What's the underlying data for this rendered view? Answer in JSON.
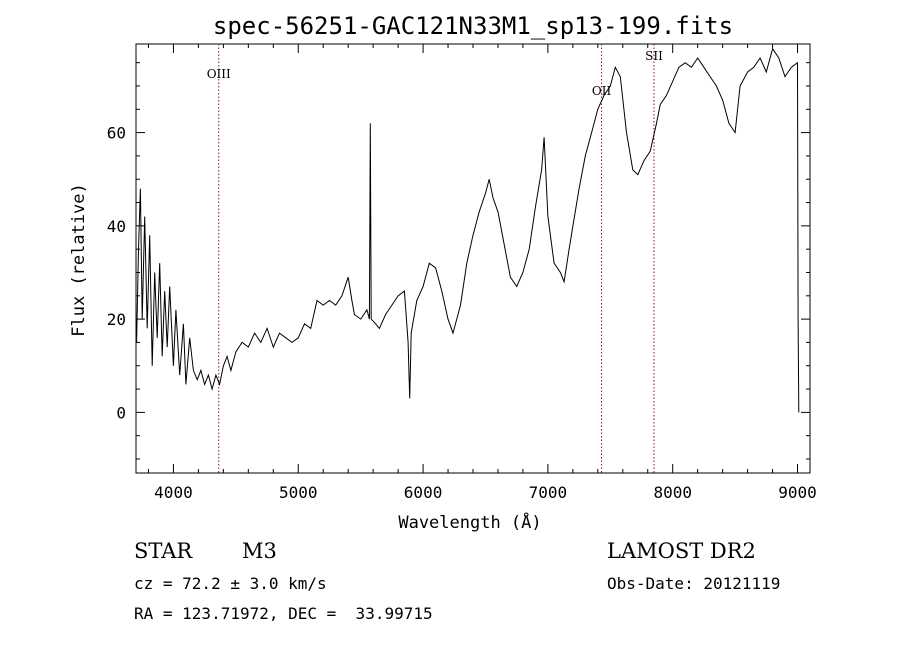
{
  "chart_data": {
    "type": "line",
    "title": "spec-56251-GAC121N33M1_sp13-199.fits",
    "xlabel": "Wavelength (Å)",
    "ylabel": "Flux (relative)",
    "xlim": [
      3700,
      9100
    ],
    "ylim": [
      -13,
      79
    ],
    "xticks": [
      4000,
      5000,
      6000,
      7000,
      8000,
      9000
    ],
    "yticks": [
      0,
      20,
      40,
      60
    ],
    "grid": false,
    "series": [
      {
        "color": "#000000",
        "points": [
          [
            3705,
            15
          ],
          [
            3720,
            35
          ],
          [
            3735,
            48
          ],
          [
            3750,
            20
          ],
          [
            3770,
            42
          ],
          [
            3790,
            18
          ],
          [
            3810,
            38
          ],
          [
            3830,
            10
          ],
          [
            3850,
            30
          ],
          [
            3870,
            16
          ],
          [
            3890,
            32
          ],
          [
            3910,
            12
          ],
          [
            3930,
            26
          ],
          [
            3950,
            14
          ],
          [
            3970,
            27
          ],
          [
            4000,
            10
          ],
          [
            4020,
            22
          ],
          [
            4050,
            8
          ],
          [
            4080,
            19
          ],
          [
            4100,
            6
          ],
          [
            4130,
            16
          ],
          [
            4160,
            9
          ],
          [
            4190,
            7
          ],
          [
            4220,
            9
          ],
          [
            4250,
            6
          ],
          [
            4280,
            8
          ],
          [
            4310,
            5
          ],
          [
            4340,
            8
          ],
          [
            4370,
            6
          ],
          [
            4400,
            10
          ],
          [
            4430,
            12
          ],
          [
            4460,
            9
          ],
          [
            4500,
            13
          ],
          [
            4550,
            15
          ],
          [
            4600,
            14
          ],
          [
            4650,
            17
          ],
          [
            4700,
            15
          ],
          [
            4750,
            18
          ],
          [
            4800,
            14
          ],
          [
            4850,
            17
          ],
          [
            4900,
            16
          ],
          [
            4950,
            15
          ],
          [
            5000,
            16
          ],
          [
            5050,
            19
          ],
          [
            5100,
            18
          ],
          [
            5150,
            24
          ],
          [
            5200,
            23
          ],
          [
            5250,
            24
          ],
          [
            5300,
            23
          ],
          [
            5350,
            25
          ],
          [
            5400,
            29
          ],
          [
            5430,
            24
          ],
          [
            5450,
            21
          ],
          [
            5500,
            20
          ],
          [
            5550,
            22
          ],
          [
            5570,
            20
          ],
          [
            5577,
            62
          ],
          [
            5584,
            20
          ],
          [
            5620,
            19
          ],
          [
            5650,
            18
          ],
          [
            5700,
            21
          ],
          [
            5750,
            23
          ],
          [
            5800,
            25
          ],
          [
            5850,
            26
          ],
          [
            5880,
            15
          ],
          [
            5893,
            3
          ],
          [
            5905,
            17
          ],
          [
            5950,
            24
          ],
          [
            6000,
            27
          ],
          [
            6050,
            32
          ],
          [
            6100,
            31
          ],
          [
            6150,
            26
          ],
          [
            6200,
            20
          ],
          [
            6240,
            17
          ],
          [
            6300,
            23
          ],
          [
            6350,
            32
          ],
          [
            6400,
            38
          ],
          [
            6450,
            43
          ],
          [
            6500,
            47
          ],
          [
            6530,
            50
          ],
          [
            6560,
            46
          ],
          [
            6600,
            43
          ],
          [
            6650,
            36
          ],
          [
            6700,
            29
          ],
          [
            6750,
            27
          ],
          [
            6800,
            30
          ],
          [
            6850,
            35
          ],
          [
            6900,
            44
          ],
          [
            6950,
            52
          ],
          [
            6970,
            59
          ],
          [
            7000,
            42
          ],
          [
            7050,
            32
          ],
          [
            7100,
            30
          ],
          [
            7130,
            28
          ],
          [
            7170,
            35
          ],
          [
            7200,
            40
          ],
          [
            7250,
            48
          ],
          [
            7300,
            55
          ],
          [
            7350,
            60
          ],
          [
            7400,
            65
          ],
          [
            7450,
            68
          ],
          [
            7500,
            70
          ],
          [
            7540,
            74
          ],
          [
            7580,
            72
          ],
          [
            7630,
            60
          ],
          [
            7680,
            52
          ],
          [
            7720,
            51
          ],
          [
            7770,
            54
          ],
          [
            7820,
            56
          ],
          [
            7870,
            62
          ],
          [
            7900,
            66
          ],
          [
            7950,
            68
          ],
          [
            8000,
            71
          ],
          [
            8050,
            74
          ],
          [
            8100,
            75
          ],
          [
            8150,
            74
          ],
          [
            8200,
            76
          ],
          [
            8250,
            74
          ],
          [
            8300,
            72
          ],
          [
            8350,
            70
          ],
          [
            8400,
            67
          ],
          [
            8450,
            62
          ],
          [
            8500,
            60
          ],
          [
            8540,
            70
          ],
          [
            8600,
            73
          ],
          [
            8650,
            74
          ],
          [
            8700,
            76
          ],
          [
            8750,
            73
          ],
          [
            8800,
            78
          ],
          [
            8850,
            76
          ],
          [
            8900,
            72
          ],
          [
            8950,
            74
          ],
          [
            9000,
            75
          ],
          [
            9005,
            20
          ],
          [
            9010,
            0
          ]
        ]
      }
    ],
    "lines": [
      {
        "label": "OIII",
        "x": 4363
      },
      {
        "label": "OII",
        "x": 7430
      },
      {
        "label": "SII",
        "x": 7850
      }
    ]
  },
  "info": {
    "classification": "STAR",
    "subclass": "M3",
    "survey": "LAMOST DR2",
    "cz": "cz = 72.2 ± 3.0 km/s",
    "obs_date": "Obs-Date: 20121119",
    "coords": "RA = 123.71972, DEC =  33.99715"
  }
}
